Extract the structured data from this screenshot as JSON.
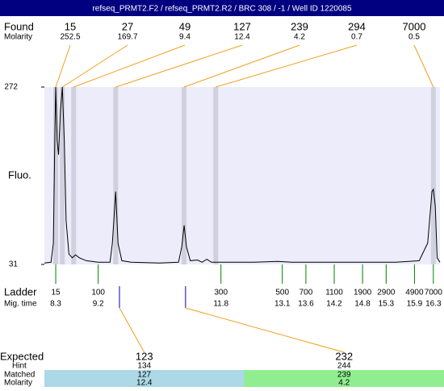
{
  "header": {
    "title": "refseq_PRMT2.F2 / refseq_PRMT2.R2 / BRC 308 / -1 / Well ID 1220085"
  },
  "chart_data": {
    "type": "electropherogram",
    "y_label": "Fluo.",
    "ylim": [
      31,
      272
    ],
    "yticks": [
      31,
      272
    ],
    "xlim": [
      8.06,
      16.44
    ],
    "found": {
      "label": "Found",
      "molarity_label": "Molarity",
      "sizes": [
        15,
        27,
        49,
        127,
        239,
        294,
        7000
      ],
      "molarity": [
        252.5,
        169.7,
        9.4,
        12.4,
        4.2,
        0.7,
        0.5
      ],
      "times": [
        8.3,
        8.44,
        8.68,
        9.57,
        11.02,
        11.69,
        16.3
      ]
    },
    "ladder": {
      "label": "Ladder",
      "time_label": "Mig. time",
      "sizes": [
        15,
        100,
        300,
        500,
        700,
        1100,
        1900,
        2900,
        4900,
        7000
      ],
      "times": [
        8.3,
        9.2,
        11.8,
        13.1,
        13.6,
        14.2,
        14.8,
        15.3,
        15.9,
        16.3
      ]
    },
    "expected": {
      "label": "Expected",
      "hint_label": "Hint",
      "matched_label": "Matched",
      "molarity_label": "Molarity",
      "sizes": [
        123,
        232
      ],
      "hint": [
        134,
        244
      ],
      "matched": [
        127,
        239
      ],
      "molarity": [
        12.4,
        4.2
      ],
      "times": [
        9.65,
        11.05
      ],
      "colors": [
        "#add8e6",
        "#90ee90"
      ]
    },
    "trace": {
      "x": [
        8.06,
        8.2,
        8.25,
        8.28,
        8.3,
        8.33,
        8.36,
        8.4,
        8.44,
        8.48,
        8.52,
        8.58,
        8.65,
        8.72,
        8.8,
        8.95,
        9.2,
        9.45,
        9.5,
        9.57,
        9.62,
        9.7,
        9.9,
        10.5,
        10.9,
        10.97,
        11.02,
        11.07,
        11.15,
        11.3,
        11.4,
        11.5,
        11.6,
        12.5,
        13.0,
        13.3,
        15.5,
        16.0,
        16.18,
        16.27,
        16.3,
        16.34,
        16.38,
        16.44
      ],
      "y": [
        33,
        34,
        60,
        200,
        272,
        200,
        180,
        240,
        272,
        200,
        90,
        45,
        40,
        44,
        40,
        36,
        34,
        34,
        60,
        130,
        60,
        36,
        34,
        33,
        34,
        55,
        84,
        55,
        36,
        37,
        34,
        38,
        34,
        34,
        35,
        34,
        34,
        36,
        60,
        130,
        133,
        110,
        40,
        34
      ]
    }
  }
}
